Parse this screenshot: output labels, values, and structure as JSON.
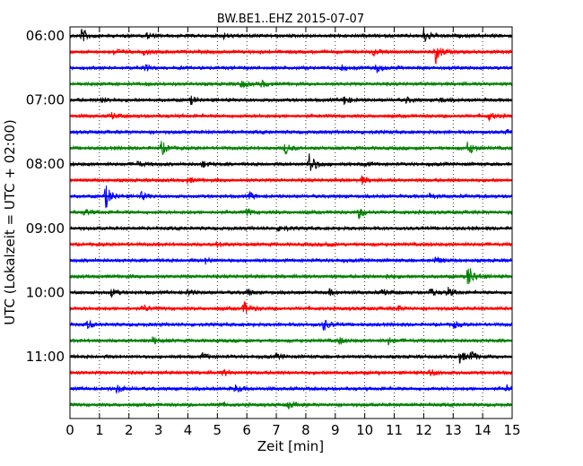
{
  "chart_data": {
    "type": "line",
    "title": "BW.BE1..EHZ 2015-07-07",
    "xlabel": "Zeit  [min]",
    "ylabel": "UTC (Lokalzeit = UTC + 02:00)",
    "xlim": [
      0,
      15
    ],
    "xticks": [
      "0",
      "1",
      "2",
      "3",
      "4",
      "5",
      "6",
      "7",
      "8",
      "9",
      "10",
      "11",
      "12",
      "13",
      "14",
      "15"
    ],
    "yticks": [
      "06:00",
      "07:00",
      "08:00",
      "09:00",
      "10:00",
      "11:00"
    ],
    "grid": "vertical dotted",
    "trace_interval_min": 15,
    "series_colors": [
      "#000000",
      "#ff0000",
      "#0000ff",
      "#008000"
    ],
    "traces": [
      {
        "start": "06:00",
        "color": "#000000",
        "events": [
          {
            "t": 0.4,
            "amp": 0.55
          },
          {
            "t": 12.0,
            "amp": 0.6
          },
          {
            "t": 2.6,
            "amp": 0.2
          },
          {
            "t": 5.2,
            "amp": 0.2
          }
        ]
      },
      {
        "start": "06:15",
        "color": "#ff0000",
        "events": [
          {
            "t": 1.5,
            "amp": 0.3
          },
          {
            "t": 2.5,
            "amp": 0.2
          },
          {
            "t": 10.3,
            "amp": 0.25
          },
          {
            "t": 12.4,
            "amp": 0.9
          }
        ]
      },
      {
        "start": "06:30",
        "color": "#0000ff",
        "events": [
          {
            "t": 2.5,
            "amp": 0.25
          },
          {
            "t": 9.2,
            "amp": 0.2
          },
          {
            "t": 10.4,
            "amp": 0.35
          }
        ]
      },
      {
        "start": "06:45",
        "color": "#008000",
        "events": [
          {
            "t": 5.8,
            "amp": 0.3
          },
          {
            "t": 6.5,
            "amp": 0.25
          }
        ]
      },
      {
        "start": "07:00",
        "color": "#000000",
        "events": [
          {
            "t": 1.1,
            "amp": 0.2
          },
          {
            "t": 4.1,
            "amp": 0.3
          },
          {
            "t": 9.3,
            "amp": 0.35
          },
          {
            "t": 11.4,
            "amp": 0.2
          },
          {
            "t": 12.5,
            "amp": 0.2
          }
        ]
      },
      {
        "start": "07:15",
        "color": "#ff0000",
        "events": [
          {
            "t": 1.4,
            "amp": 0.25
          },
          {
            "t": 14.2,
            "amp": 0.3
          }
        ]
      },
      {
        "start": "07:30",
        "color": "#0000ff",
        "events": [
          {
            "t": 14.8,
            "amp": 0.2
          }
        ]
      },
      {
        "start": "07:45",
        "color": "#008000",
        "events": [
          {
            "t": 3.1,
            "amp": 0.55
          },
          {
            "t": 7.3,
            "amp": 0.45
          },
          {
            "t": 13.5,
            "amp": 0.6
          }
        ]
      },
      {
        "start": "08:00",
        "color": "#000000",
        "events": [
          {
            "t": 2.3,
            "amp": 0.2
          },
          {
            "t": 4.5,
            "amp": 0.25
          },
          {
            "t": 8.1,
            "amp": 0.95
          },
          {
            "t": 10.0,
            "amp": 0.15
          }
        ]
      },
      {
        "start": "08:15",
        "color": "#ff0000",
        "events": [
          {
            "t": 4.0,
            "amp": 0.2
          },
          {
            "t": 9.9,
            "amp": 0.3
          }
        ]
      },
      {
        "start": "08:30",
        "color": "#0000ff",
        "events": [
          {
            "t": 1.2,
            "amp": 1.0
          },
          {
            "t": 2.4,
            "amp": 0.3
          },
          {
            "t": 6.1,
            "amp": 0.25
          },
          {
            "t": 12.2,
            "amp": 0.2
          }
        ]
      },
      {
        "start": "08:45",
        "color": "#008000",
        "events": [
          {
            "t": 0.5,
            "amp": 0.25
          },
          {
            "t": 6.0,
            "amp": 0.25
          },
          {
            "t": 9.8,
            "amp": 0.45
          }
        ]
      },
      {
        "start": "09:00",
        "color": "#000000",
        "events": [
          {
            "t": 7.1,
            "amp": 0.3
          }
        ]
      },
      {
        "start": "09:15",
        "color": "#ff0000",
        "events": [
          {
            "t": 5.0,
            "amp": 0.2
          },
          {
            "t": 8.7,
            "amp": 0.2
          }
        ]
      },
      {
        "start": "09:30",
        "color": "#0000ff",
        "events": [
          {
            "t": 4.6,
            "amp": 0.2
          },
          {
            "t": 12.4,
            "amp": 0.25
          }
        ]
      },
      {
        "start": "09:45",
        "color": "#008000",
        "events": [
          {
            "t": 10.7,
            "amp": 0.2
          },
          {
            "t": 13.5,
            "amp": 1.0
          }
        ]
      },
      {
        "start": "10:00",
        "color": "#000000",
        "events": [
          {
            "t": 1.4,
            "amp": 0.3
          },
          {
            "t": 4.0,
            "amp": 0.2
          },
          {
            "t": 6.0,
            "amp": 0.25
          },
          {
            "t": 8.8,
            "amp": 0.2
          },
          {
            "t": 10.6,
            "amp": 0.25
          },
          {
            "t": 12.2,
            "amp": 0.35
          },
          {
            "t": 12.8,
            "amp": 0.4
          }
        ]
      },
      {
        "start": "10:15",
        "color": "#ff0000",
        "events": [
          {
            "t": 2.5,
            "amp": 0.25
          },
          {
            "t": 5.9,
            "amp": 0.55
          },
          {
            "t": 11.1,
            "amp": 0.2
          }
        ]
      },
      {
        "start": "10:30",
        "color": "#0000ff",
        "events": [
          {
            "t": 0.6,
            "amp": 0.3
          },
          {
            "t": 8.6,
            "amp": 0.45
          },
          {
            "t": 13.0,
            "amp": 0.25
          }
        ]
      },
      {
        "start": "10:45",
        "color": "#008000",
        "events": [
          {
            "t": 2.8,
            "amp": 0.3
          },
          {
            "t": 9.1,
            "amp": 0.3
          },
          {
            "t": 10.8,
            "amp": 0.25
          }
        ]
      },
      {
        "start": "11:00",
        "color": "#000000",
        "events": [
          {
            "t": 4.5,
            "amp": 0.25
          },
          {
            "t": 7.0,
            "amp": 0.2
          },
          {
            "t": 13.2,
            "amp": 0.5
          },
          {
            "t": 13.6,
            "amp": 0.4
          }
        ]
      },
      {
        "start": "11:15",
        "color": "#ff0000",
        "events": [
          {
            "t": 5.2,
            "amp": 0.25
          },
          {
            "t": 12.2,
            "amp": 0.3
          }
        ]
      },
      {
        "start": "11:30",
        "color": "#0000ff",
        "events": [
          {
            "t": 1.6,
            "amp": 0.35
          },
          {
            "t": 5.6,
            "amp": 0.3
          },
          {
            "t": 14.8,
            "amp": 0.25
          }
        ]
      },
      {
        "start": "11:45",
        "color": "#008000",
        "events": [
          {
            "t": 5.0,
            "amp": 0.2
          },
          {
            "t": 7.4,
            "amp": 0.3
          }
        ]
      }
    ]
  }
}
